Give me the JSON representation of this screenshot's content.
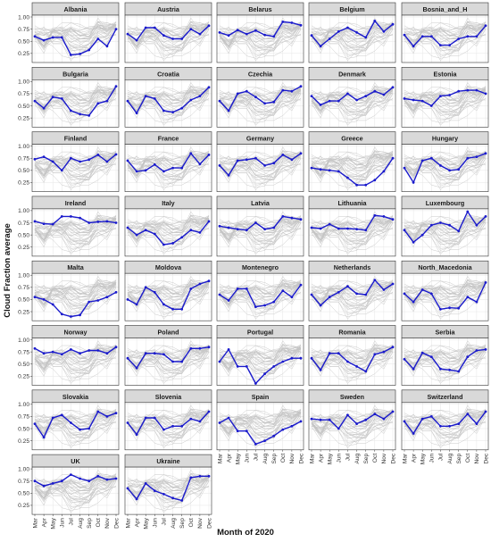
{
  "chart_data": {
    "type": "line",
    "xlabel": "Month of 2020",
    "ylabel": "Cloud Fraction average",
    "x": [
      "Mar",
      "Apr",
      "May",
      "Jun",
      "Jul",
      "Aug",
      "Sep",
      "Oct",
      "Nov",
      "Dec"
    ],
    "y_ticks": [
      "0.25",
      "0.50",
      "0.75",
      "1.00"
    ],
    "ylim": [
      0.1,
      1.0
    ],
    "grid": true,
    "colors": {
      "highlight": "#1a1acc",
      "background_lines": "#c4c4c4",
      "panel_bg": "#ffffff",
      "grid": "#e6e6e6",
      "strip_bg": "#d9d9d9",
      "border": "#333333"
    },
    "series": [
      {
        "name": "Albania",
        "values": [
          0.6,
          0.52,
          0.58,
          0.58,
          0.22,
          0.24,
          0.32,
          0.55,
          0.4,
          0.75
        ]
      },
      {
        "name": "Austria",
        "values": [
          0.65,
          0.52,
          0.78,
          0.78,
          0.62,
          0.55,
          0.55,
          0.75,
          0.65,
          0.82
        ]
      },
      {
        "name": "Belarus",
        "values": [
          0.68,
          0.62,
          0.73,
          0.65,
          0.72,
          0.63,
          0.6,
          0.9,
          0.88,
          0.83
        ]
      },
      {
        "name": "Belgium",
        "values": [
          0.62,
          0.4,
          0.55,
          0.7,
          0.78,
          0.68,
          0.58,
          0.92,
          0.7,
          0.85
        ]
      },
      {
        "name": "Bosnia_and_H",
        "values": [
          0.63,
          0.4,
          0.6,
          0.6,
          0.42,
          0.42,
          0.55,
          0.6,
          0.6,
          0.82
        ]
      },
      {
        "name": "Bulgaria",
        "values": [
          0.6,
          0.45,
          0.68,
          0.65,
          0.4,
          0.33,
          0.3,
          0.55,
          0.6,
          0.9
        ]
      },
      {
        "name": "Croatia",
        "values": [
          0.6,
          0.35,
          0.7,
          0.65,
          0.4,
          0.37,
          0.45,
          0.62,
          0.7,
          0.88
        ]
      },
      {
        "name": "Czechia",
        "values": [
          0.6,
          0.4,
          0.75,
          0.8,
          0.68,
          0.55,
          0.58,
          0.82,
          0.8,
          0.9
        ]
      },
      {
        "name": "Denmark",
        "values": [
          0.7,
          0.52,
          0.6,
          0.6,
          0.75,
          0.62,
          0.7,
          0.8,
          0.73,
          0.88
        ]
      },
      {
        "name": "Estonia",
        "values": [
          0.65,
          0.62,
          0.6,
          0.5,
          0.7,
          0.72,
          0.8,
          0.82,
          0.82,
          0.75
        ]
      },
      {
        "name": "Finland",
        "values": [
          0.73,
          0.78,
          0.68,
          0.5,
          0.75,
          0.68,
          0.72,
          0.82,
          0.68,
          0.83
        ]
      },
      {
        "name": "France",
        "values": [
          0.7,
          0.48,
          0.5,
          0.62,
          0.48,
          0.55,
          0.55,
          0.85,
          0.63,
          0.82
        ]
      },
      {
        "name": "Germany",
        "values": [
          0.6,
          0.4,
          0.7,
          0.72,
          0.75,
          0.6,
          0.65,
          0.82,
          0.72,
          0.85
        ]
      },
      {
        "name": "Greece",
        "values": [
          0.55,
          0.52,
          0.5,
          0.48,
          0.35,
          0.2,
          0.2,
          0.3,
          0.48,
          0.75
        ]
      },
      {
        "name": "Hungary",
        "values": [
          0.55,
          0.25,
          0.7,
          0.75,
          0.6,
          0.5,
          0.52,
          0.75,
          0.78,
          0.85
        ]
      },
      {
        "name": "Ireland",
        "values": [
          0.78,
          0.73,
          0.72,
          0.88,
          0.88,
          0.85,
          0.75,
          0.77,
          0.78,
          0.75
        ]
      },
      {
        "name": "Italy",
        "values": [
          0.65,
          0.5,
          0.6,
          0.52,
          0.3,
          0.33,
          0.45,
          0.6,
          0.55,
          0.78
        ]
      },
      {
        "name": "Latvia",
        "values": [
          0.68,
          0.65,
          0.62,
          0.6,
          0.75,
          0.62,
          0.65,
          0.88,
          0.85,
          0.82
        ]
      },
      {
        "name": "Lithuania",
        "values": [
          0.65,
          0.63,
          0.72,
          0.63,
          0.63,
          0.62,
          0.6,
          0.9,
          0.88,
          0.82
        ]
      },
      {
        "name": "Luxembourg",
        "values": [
          0.6,
          0.35,
          0.5,
          0.7,
          0.75,
          0.7,
          0.58,
          0.98,
          0.7,
          0.88
        ]
      },
      {
        "name": "Malta",
        "values": [
          0.55,
          0.5,
          0.4,
          0.2,
          0.15,
          0.18,
          0.45,
          0.48,
          0.55,
          0.65
        ]
      },
      {
        "name": "Moldova",
        "values": [
          0.5,
          0.4,
          0.75,
          0.65,
          0.4,
          0.3,
          0.3,
          0.72,
          0.82,
          0.88
        ]
      },
      {
        "name": "Montenegro",
        "values": [
          0.6,
          0.48,
          0.72,
          0.72,
          0.35,
          0.38,
          0.45,
          0.68,
          0.55,
          0.8
        ]
      },
      {
        "name": "Netherlands",
        "values": [
          0.6,
          0.38,
          0.55,
          0.65,
          0.77,
          0.62,
          0.6,
          0.9,
          0.7,
          0.82
        ]
      },
      {
        "name": "North_Macedonia",
        "values": [
          0.62,
          0.45,
          0.7,
          0.62,
          0.3,
          0.33,
          0.32,
          0.55,
          0.45,
          0.85
        ]
      },
      {
        "name": "Norway",
        "values": [
          0.82,
          0.72,
          0.75,
          0.7,
          0.8,
          0.72,
          0.78,
          0.78,
          0.72,
          0.85
        ]
      },
      {
        "name": "Poland",
        "values": [
          0.62,
          0.42,
          0.72,
          0.72,
          0.7,
          0.55,
          0.55,
          0.82,
          0.82,
          0.85
        ]
      },
      {
        "name": "Portugal",
        "values": [
          0.55,
          0.8,
          0.45,
          0.45,
          0.1,
          0.3,
          0.45,
          0.55,
          0.62,
          0.62
        ]
      },
      {
        "name": "Romania",
        "values": [
          0.62,
          0.38,
          0.72,
          0.72,
          0.55,
          0.45,
          0.35,
          0.7,
          0.75,
          0.85
        ]
      },
      {
        "name": "Serbia",
        "values": [
          0.6,
          0.4,
          0.73,
          0.65,
          0.4,
          0.38,
          0.35,
          0.65,
          0.78,
          0.8
        ]
      },
      {
        "name": "Slovakia",
        "values": [
          0.6,
          0.32,
          0.72,
          0.78,
          0.62,
          0.48,
          0.5,
          0.85,
          0.75,
          0.82
        ]
      },
      {
        "name": "Slovenia",
        "values": [
          0.62,
          0.38,
          0.72,
          0.72,
          0.48,
          0.55,
          0.55,
          0.7,
          0.65,
          0.85
        ]
      },
      {
        "name": "Spain",
        "values": [
          0.62,
          0.72,
          0.45,
          0.45,
          0.18,
          0.25,
          0.35,
          0.48,
          0.55,
          0.65
        ]
      },
      {
        "name": "Sweden",
        "values": [
          0.7,
          0.68,
          0.68,
          0.5,
          0.78,
          0.6,
          0.68,
          0.8,
          0.7,
          0.85
        ]
      },
      {
        "name": "Switzerland",
        "values": [
          0.65,
          0.4,
          0.7,
          0.75,
          0.55,
          0.55,
          0.6,
          0.8,
          0.6,
          0.85
        ]
      },
      {
        "name": "UK",
        "values": [
          0.75,
          0.65,
          0.7,
          0.75,
          0.88,
          0.8,
          0.75,
          0.85,
          0.78,
          0.8
        ]
      },
      {
        "name": "Ukraine",
        "values": [
          0.6,
          0.38,
          0.7,
          0.55,
          0.48,
          0.4,
          0.35,
          0.82,
          0.85,
          0.85
        ]
      }
    ]
  }
}
